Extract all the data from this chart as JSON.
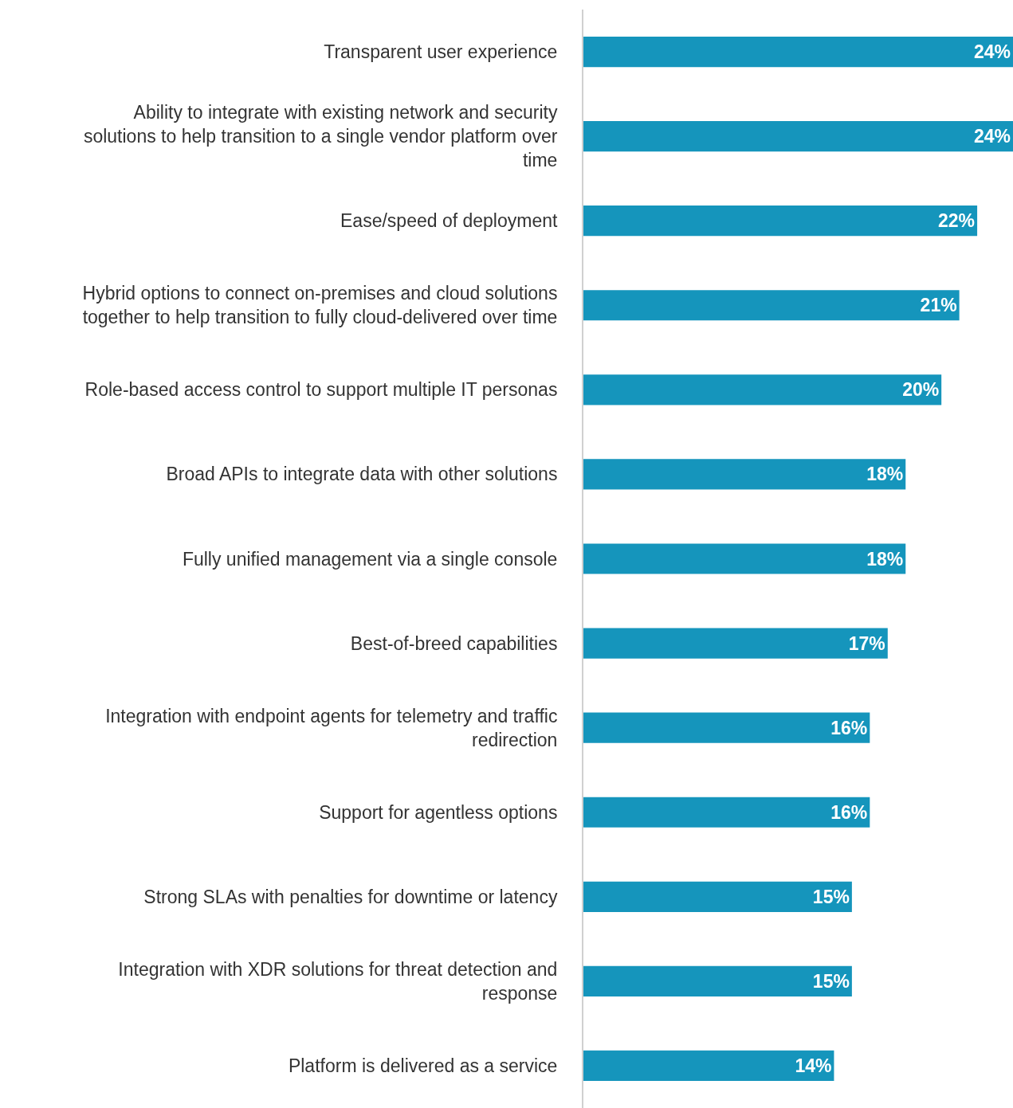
{
  "chart_data": {
    "type": "bar",
    "orientation": "horizontal",
    "categories": [
      "Transparent user experience",
      "Ability to integrate with existing network and security solutions to help transition to a single vendor platform over time",
      "Ease/speed of deployment",
      "Hybrid options to connect on-premises and cloud solutions together to help transition to fully cloud-delivered over time",
      "Role-based access control to support multiple IT personas",
      "Broad APIs to integrate data with other solutions",
      "Fully unified management via a single console",
      "Best-of-breed capabilities",
      "Integration with endpoint agents for telemetry and traffic redirection",
      "Support for agentless options",
      "Strong SLAs with penalties for downtime or latency",
      "Integration with XDR solutions for threat detection and response",
      "Platform is delivered as a service"
    ],
    "values": [
      24,
      24,
      22,
      21,
      20,
      18,
      18,
      17,
      16,
      16,
      15,
      15,
      14
    ],
    "value_labels": [
      "24%",
      "24%",
      "22%",
      "21%",
      "20%",
      "18%",
      "18%",
      "17%",
      "16%",
      "16%",
      "15%",
      "15%",
      "14%"
    ],
    "color": "#1595bc",
    "xlim": [
      0,
      24
    ],
    "tick_labels": "y",
    "grid": false,
    "legend": false
  }
}
